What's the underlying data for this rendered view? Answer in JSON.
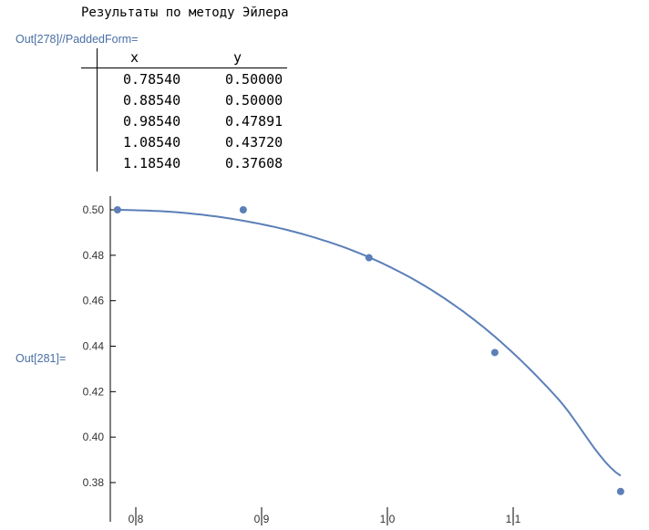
{
  "heading": "Результаты по методу Эйлера",
  "out_label_1": "Out[278]//PaddedForm=",
  "out_label_2": "Out[281]=",
  "table": {
    "headers": [
      "x",
      "y"
    ],
    "rows": [
      [
        "0.78540",
        "0.50000"
      ],
      [
        "0.88540",
        "0.50000"
      ],
      [
        "0.98540",
        "0.47891"
      ],
      [
        "1.08540",
        "0.43720"
      ],
      [
        "1.18540",
        "0.37608"
      ]
    ]
  },
  "chart_data": {
    "type": "scatter",
    "title": "",
    "xlabel": "",
    "ylabel": "",
    "xlim": [
      0.78,
      1.19
    ],
    "ylim": [
      0.367,
      0.506
    ],
    "x_ticks": [
      "0.8",
      "0.9",
      "1.0",
      "1.1"
    ],
    "y_ticks": [
      "0.38",
      "0.40",
      "0.42",
      "0.44",
      "0.46",
      "0.48",
      "0.50"
    ],
    "points": [
      {
        "x": 0.7854,
        "y": 0.5
      },
      {
        "x": 0.8854,
        "y": 0.5
      },
      {
        "x": 0.9854,
        "y": 0.47891
      },
      {
        "x": 1.0854,
        "y": 0.4372
      },
      {
        "x": 1.1854,
        "y": 0.37608
      }
    ],
    "curve": [
      {
        "x": 0.7854,
        "y": 0.5
      },
      {
        "x": 0.8354,
        "y": 0.4988
      },
      {
        "x": 0.8854,
        "y": 0.4952
      },
      {
        "x": 0.9354,
        "y": 0.4889
      },
      {
        "x": 0.9854,
        "y": 0.4791
      },
      {
        "x": 1.0354,
        "y": 0.4646
      },
      {
        "x": 1.0854,
        "y": 0.4442
      },
      {
        "x": 1.1354,
        "y": 0.417
      },
      {
        "x": 1.1854,
        "y": 0.383
      }
    ],
    "grid": false,
    "point_color": "#5b7fb8",
    "line_color": "#5b7fb8"
  }
}
